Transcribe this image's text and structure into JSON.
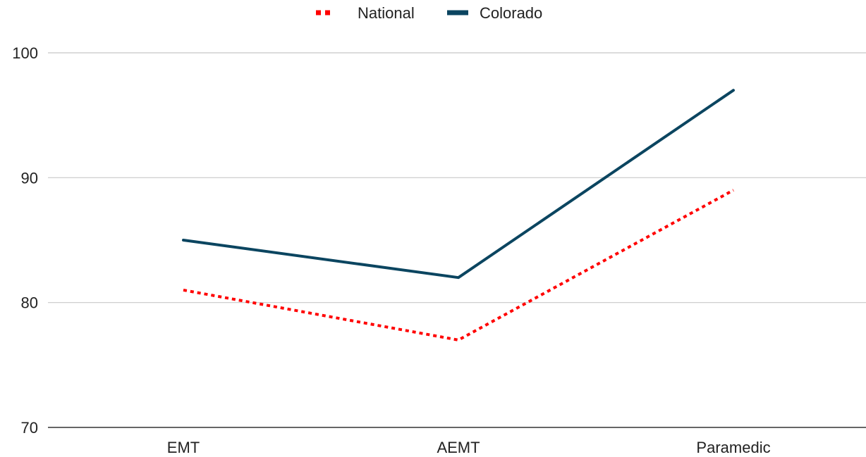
{
  "chart_data": {
    "type": "line",
    "categories": [
      "EMT",
      "AEMT",
      "Paramedic"
    ],
    "series": [
      {
        "name": "National",
        "values": [
          81,
          77,
          89
        ],
        "color": "#ff0000",
        "style": "dotted"
      },
      {
        "name": "Colorado",
        "values": [
          85,
          82,
          97
        ],
        "color": "#0b4560",
        "style": "solid"
      }
    ],
    "yticks": [
      "70",
      "80",
      "90",
      "100"
    ],
    "ylim": [
      70,
      100
    ],
    "title": "",
    "xlabel": "",
    "ylabel": "",
    "grid": true,
    "legend_position": "top-center"
  }
}
